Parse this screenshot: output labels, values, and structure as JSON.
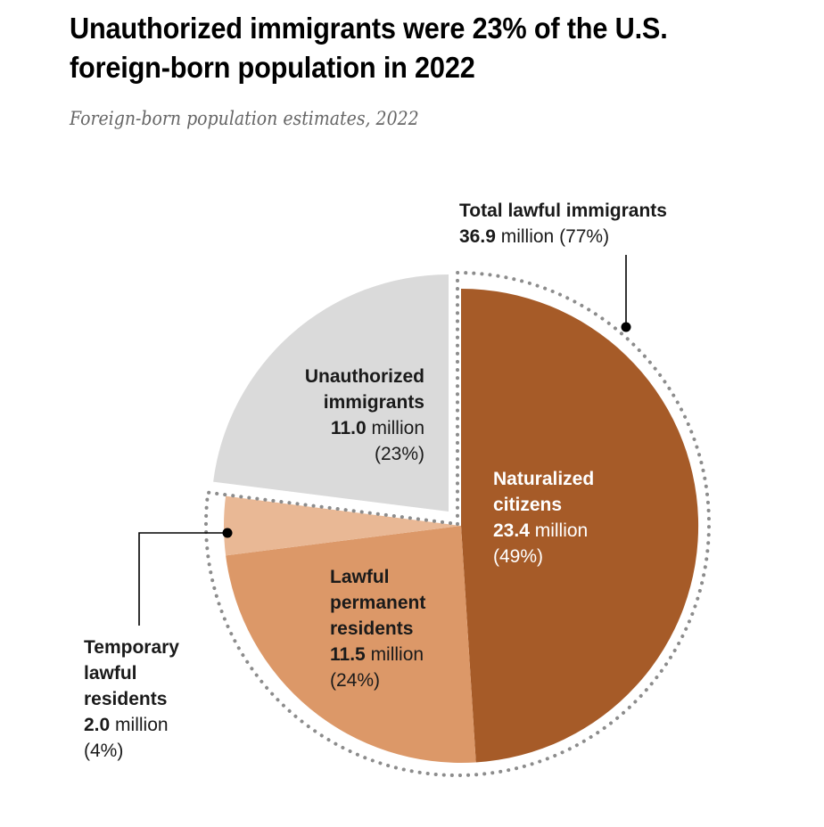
{
  "title": "Unauthorized immigrants were 23% of the U.S. foreign-born population in 2022",
  "subtitle": "Foreign-born population estimates, 2022",
  "chart_data": {
    "type": "pie",
    "title": "Unauthorized immigrants were 23% of the U.S. foreign-born population in 2022",
    "subtitle": "Foreign-born population estimates, 2022",
    "units": "million",
    "slices": [
      {
        "name": "Naturalized citizens",
        "value": 23.4,
        "percent": 49,
        "color": "#a65b28",
        "text_color": "#ffffff",
        "label_lines": [
          "Naturalized",
          "citizens"
        ],
        "value_text": "23.4",
        "unit_text": "million",
        "pct_text": "(49%)"
      },
      {
        "name": "Lawful permanent residents",
        "value": 11.5,
        "percent": 24,
        "color": "#dc9868",
        "text_color": "#1a1a1a",
        "label_lines": [
          "Lawful",
          "permanent",
          "residents"
        ],
        "value_text": "11.5",
        "unit_text": "million",
        "pct_text": "(24%)"
      },
      {
        "name": "Temporary lawful residents",
        "value": 2.0,
        "percent": 4,
        "color": "#e9b895",
        "text_color": "#1a1a1a",
        "label_lines": [
          "Temporary",
          "lawful",
          "residents"
        ],
        "value_text": "2.0",
        "unit_text": "million",
        "pct_text": "(4%)"
      },
      {
        "name": "Unauthorized immigrants",
        "value": 11.0,
        "percent": 23,
        "color": "#dadada",
        "text_color": "#1a1a1a",
        "label_lines": [
          "Unauthorized",
          "immigrants"
        ],
        "value_text": "11.0",
        "unit_text": "million",
        "pct_text": "(23%)",
        "exploded": true
      }
    ],
    "groups": [
      {
        "name": "Total lawful immigrants",
        "value": 36.9,
        "percent": 77,
        "value_text": "36.9",
        "unit_text": "million",
        "pct_text": "(77%)",
        "members": [
          "Naturalized citizens",
          "Lawful permanent residents",
          "Temporary lawful residents"
        ]
      }
    ],
    "outline_color": "#8c8c8c",
    "leader_color": "#000000"
  }
}
